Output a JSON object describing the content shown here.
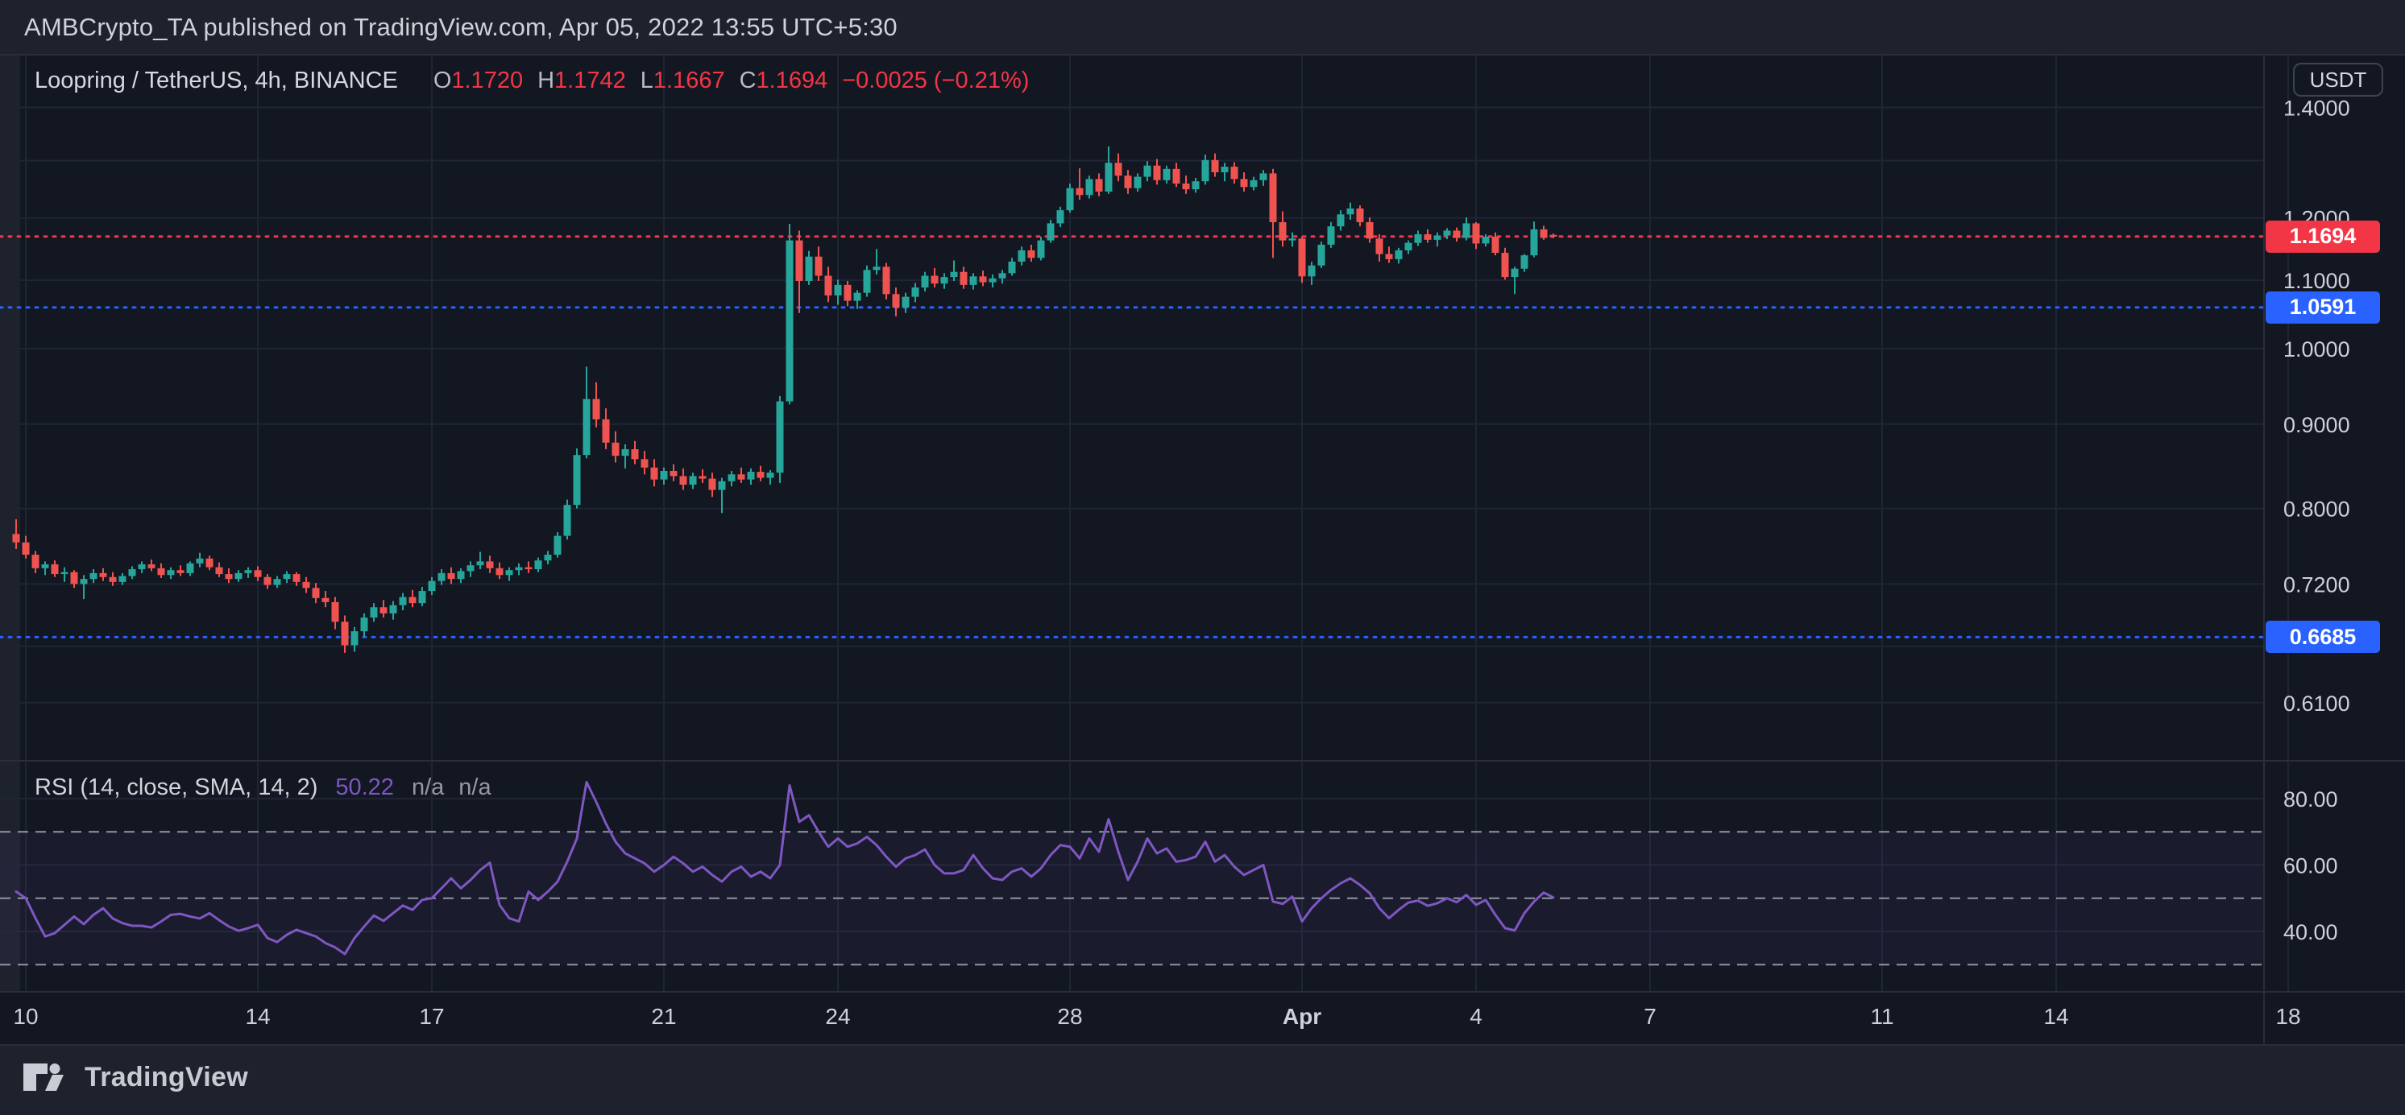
{
  "attribution": {
    "text": "AMBCrypto_TA published on TradingView.com, Apr 05, 2022 13:55 UTC+5:30"
  },
  "legend": {
    "symbol": "Loopring / TetherUS, 4h, BINANCE",
    "o_label": "O",
    "o": "1.1720",
    "h_label": "H",
    "h": "1.1742",
    "l_label": "L",
    "l": "1.1667",
    "c_label": "C",
    "c": "1.1694",
    "change": "−0.0025 (−0.21%)"
  },
  "rsi_legend": {
    "title": "RSI (14, close, SMA, 14, 2)",
    "value": "50.22",
    "na1": "n/a",
    "na2": "n/a"
  },
  "axis": {
    "currency": "USDT"
  },
  "footer": {
    "brand": "TradingView"
  },
  "colors": {
    "background": "#1e222d",
    "pane": "#131722",
    "grid": "#1f2534",
    "border": "#2a2e39",
    "up": "#26a69a",
    "down": "#ef5350",
    "accent_red": "#f23645",
    "accent_blue": "#2962ff",
    "rsi_line": "#7e57c2",
    "rsi_band_fill": "rgba(126,87,194,0.07)",
    "rsi_band_line": "#a6abb8",
    "text": "#ced0db",
    "text_dim": "#b2b5be"
  },
  "chart_data": {
    "type": "candlestick",
    "title": "Loopring / TetherUS, 4h, BINANCE",
    "legend_position": "top-left",
    "grid": true,
    "scale": "log",
    "x_range": [
      "Mar 09 20:00",
      "Apr 05 08:00"
    ],
    "price_ticks": [
      {
        "v": 1.4,
        "label": "1.4000"
      },
      {
        "v": 1.3,
        "label": ""
      },
      {
        "v": 1.2,
        "label": "1.2000"
      },
      {
        "v": 1.1,
        "label": "1.1000"
      },
      {
        "v": 1.0,
        "label": "1.0000"
      },
      {
        "v": 0.9,
        "label": "0.9000"
      },
      {
        "v": 0.8,
        "label": "0.8000"
      },
      {
        "v": 0.72,
        "label": "0.7200"
      },
      {
        "v": 0.66,
        "label": ""
      },
      {
        "v": 0.61,
        "label": "0.6100"
      }
    ],
    "time_ticks": [
      {
        "bar": 1,
        "label": "10",
        "bold": false
      },
      {
        "bar": 25,
        "label": "14",
        "bold": false
      },
      {
        "bar": 43,
        "label": "17",
        "bold": false
      },
      {
        "bar": 67,
        "label": "21",
        "bold": false
      },
      {
        "bar": 85,
        "label": "24",
        "bold": false
      },
      {
        "bar": 109,
        "label": "28",
        "bold": false
      },
      {
        "bar": 133,
        "label": "Apr",
        "bold": true
      },
      {
        "bar": 151,
        "label": "4",
        "bold": false
      },
      {
        "bar": 169,
        "label": "7",
        "bold": false
      },
      {
        "bar": 193,
        "label": "11",
        "bold": false
      },
      {
        "bar": 211,
        "label": "14",
        "bold": false
      },
      {
        "bar": 235,
        "label": "18",
        "bold": false
      }
    ],
    "levels": [
      {
        "value": 1.1694,
        "label": "1.1694",
        "color": "#f23645",
        "style": "dotted",
        "kind": "last-price"
      },
      {
        "value": 1.0591,
        "label": "1.0591",
        "color": "#2962ff",
        "style": "dotted",
        "kind": "drawn-line"
      },
      {
        "value": 0.6685,
        "label": "0.6685",
        "color": "#2962ff",
        "style": "dotted",
        "kind": "drawn-line"
      }
    ],
    "bars": [
      [
        0.772,
        0.788,
        0.756,
        0.763
      ],
      [
        0.763,
        0.77,
        0.746,
        0.75
      ],
      [
        0.75,
        0.754,
        0.731,
        0.736
      ],
      [
        0.736,
        0.743,
        0.729,
        0.74
      ],
      [
        0.74,
        0.744,
        0.727,
        0.73
      ],
      [
        0.73,
        0.737,
        0.722,
        0.732
      ],
      [
        0.732,
        0.734,
        0.716,
        0.72
      ],
      [
        0.72,
        0.729,
        0.705,
        0.725
      ],
      [
        0.725,
        0.735,
        0.721,
        0.731
      ],
      [
        0.731,
        0.736,
        0.723,
        0.727
      ],
      [
        0.727,
        0.732,
        0.718,
        0.722
      ],
      [
        0.722,
        0.731,
        0.719,
        0.728
      ],
      [
        0.728,
        0.738,
        0.725,
        0.735
      ],
      [
        0.735,
        0.743,
        0.731,
        0.74
      ],
      [
        0.74,
        0.745,
        0.733,
        0.736
      ],
      [
        0.736,
        0.741,
        0.726,
        0.729
      ],
      [
        0.729,
        0.737,
        0.725,
        0.734
      ],
      [
        0.734,
        0.739,
        0.728,
        0.731
      ],
      [
        0.731,
        0.743,
        0.728,
        0.741
      ],
      [
        0.741,
        0.752,
        0.737,
        0.746
      ],
      [
        0.746,
        0.749,
        0.734,
        0.737
      ],
      [
        0.737,
        0.742,
        0.727,
        0.73
      ],
      [
        0.73,
        0.736,
        0.721,
        0.725
      ],
      [
        0.725,
        0.734,
        0.722,
        0.731
      ],
      [
        0.731,
        0.737,
        0.726,
        0.734
      ],
      [
        0.734,
        0.738,
        0.723,
        0.727
      ],
      [
        0.727,
        0.73,
        0.715,
        0.719
      ],
      [
        0.719,
        0.728,
        0.716,
        0.725
      ],
      [
        0.725,
        0.733,
        0.721,
        0.73
      ],
      [
        0.73,
        0.732,
        0.718,
        0.722
      ],
      [
        0.722,
        0.727,
        0.711,
        0.716
      ],
      [
        0.716,
        0.721,
        0.701,
        0.706
      ],
      [
        0.706,
        0.713,
        0.697,
        0.702
      ],
      [
        0.702,
        0.707,
        0.676,
        0.683
      ],
      [
        0.683,
        0.689,
        0.654,
        0.661
      ],
      [
        0.661,
        0.678,
        0.655,
        0.674
      ],
      [
        0.674,
        0.691,
        0.669,
        0.687
      ],
      [
        0.687,
        0.701,
        0.683,
        0.697
      ],
      [
        0.697,
        0.704,
        0.687,
        0.691
      ],
      [
        0.691,
        0.703,
        0.685,
        0.699
      ],
      [
        0.699,
        0.711,
        0.694,
        0.707
      ],
      [
        0.707,
        0.714,
        0.697,
        0.701
      ],
      [
        0.701,
        0.717,
        0.698,
        0.713
      ],
      [
        0.713,
        0.727,
        0.709,
        0.723
      ],
      [
        0.723,
        0.735,
        0.719,
        0.731
      ],
      [
        0.731,
        0.737,
        0.72,
        0.725
      ],
      [
        0.725,
        0.736,
        0.721,
        0.733
      ],
      [
        0.733,
        0.743,
        0.727,
        0.739
      ],
      [
        0.739,
        0.753,
        0.735,
        0.743
      ],
      [
        0.743,
        0.749,
        0.731,
        0.736
      ],
      [
        0.736,
        0.742,
        0.725,
        0.729
      ],
      [
        0.729,
        0.737,
        0.723,
        0.734
      ],
      [
        0.734,
        0.741,
        0.729,
        0.737
      ],
      [
        0.737,
        0.743,
        0.731,
        0.735
      ],
      [
        0.735,
        0.747,
        0.732,
        0.744
      ],
      [
        0.744,
        0.754,
        0.74,
        0.75
      ],
      [
        0.75,
        0.774,
        0.747,
        0.77
      ],
      [
        0.77,
        0.81,
        0.766,
        0.804
      ],
      [
        0.804,
        0.87,
        0.8,
        0.862
      ],
      [
        0.862,
        0.975,
        0.858,
        0.932
      ],
      [
        0.932,
        0.954,
        0.896,
        0.906
      ],
      [
        0.906,
        0.92,
        0.869,
        0.877
      ],
      [
        0.877,
        0.891,
        0.853,
        0.861
      ],
      [
        0.861,
        0.875,
        0.846,
        0.869
      ],
      [
        0.869,
        0.879,
        0.851,
        0.857
      ],
      [
        0.857,
        0.867,
        0.839,
        0.847
      ],
      [
        0.847,
        0.857,
        0.825,
        0.833
      ],
      [
        0.833,
        0.847,
        0.827,
        0.843
      ],
      [
        0.843,
        0.851,
        0.831,
        0.837
      ],
      [
        0.837,
        0.846,
        0.821,
        0.827
      ],
      [
        0.827,
        0.841,
        0.822,
        0.837
      ],
      [
        0.837,
        0.845,
        0.829,
        0.834
      ],
      [
        0.834,
        0.841,
        0.813,
        0.821
      ],
      [
        0.821,
        0.835,
        0.795,
        0.831
      ],
      [
        0.831,
        0.843,
        0.825,
        0.839
      ],
      [
        0.839,
        0.847,
        0.829,
        0.833
      ],
      [
        0.833,
        0.846,
        0.827,
        0.842
      ],
      [
        0.842,
        0.849,
        0.831,
        0.835
      ],
      [
        0.835,
        0.844,
        0.827,
        0.841
      ],
      [
        0.841,
        0.936,
        0.829,
        0.929
      ],
      [
        0.929,
        1.19,
        0.925,
        1.163
      ],
      [
        1.163,
        1.179,
        1.051,
        1.099
      ],
      [
        1.099,
        1.146,
        1.093,
        1.137
      ],
      [
        1.137,
        1.153,
        1.099,
        1.107
      ],
      [
        1.107,
        1.121,
        1.067,
        1.077
      ],
      [
        1.077,
        1.101,
        1.063,
        1.093
      ],
      [
        1.093,
        1.099,
        1.061,
        1.069
      ],
      [
        1.069,
        1.085,
        1.057,
        1.081
      ],
      [
        1.081,
        1.123,
        1.075,
        1.116
      ],
      [
        1.116,
        1.149,
        1.109,
        1.121
      ],
      [
        1.121,
        1.127,
        1.071,
        1.079
      ],
      [
        1.079,
        1.089,
        1.046,
        1.059
      ],
      [
        1.059,
        1.081,
        1.051,
        1.075
      ],
      [
        1.075,
        1.096,
        1.067,
        1.089
      ],
      [
        1.089,
        1.113,
        1.083,
        1.107
      ],
      [
        1.107,
        1.119,
        1.089,
        1.095
      ],
      [
        1.095,
        1.111,
        1.087,
        1.105
      ],
      [
        1.105,
        1.131,
        1.099,
        1.113
      ],
      [
        1.113,
        1.121,
        1.087,
        1.093
      ],
      [
        1.093,
        1.111,
        1.086,
        1.106
      ],
      [
        1.106,
        1.115,
        1.091,
        1.097
      ],
      [
        1.097,
        1.109,
        1.089,
        1.103
      ],
      [
        1.103,
        1.116,
        1.095,
        1.111
      ],
      [
        1.111,
        1.135,
        1.107,
        1.129
      ],
      [
        1.129,
        1.153,
        1.123,
        1.147
      ],
      [
        1.147,
        1.156,
        1.129,
        1.135
      ],
      [
        1.135,
        1.169,
        1.131,
        1.163
      ],
      [
        1.163,
        1.197,
        1.159,
        1.191
      ],
      [
        1.191,
        1.219,
        1.185,
        1.213
      ],
      [
        1.213,
        1.259,
        1.209,
        1.251
      ],
      [
        1.251,
        1.286,
        1.231,
        1.239
      ],
      [
        1.239,
        1.273,
        1.233,
        1.267
      ],
      [
        1.267,
        1.277,
        1.237,
        1.245
      ],
      [
        1.245,
        1.326,
        1.241,
        1.296
      ],
      [
        1.296,
        1.313,
        1.263,
        1.273
      ],
      [
        1.273,
        1.283,
        1.241,
        1.251
      ],
      [
        1.251,
        1.277,
        1.245,
        1.271
      ],
      [
        1.271,
        1.299,
        1.263,
        1.291
      ],
      [
        1.291,
        1.303,
        1.257,
        1.265
      ],
      [
        1.265,
        1.291,
        1.259,
        1.285
      ],
      [
        1.285,
        1.296,
        1.253,
        1.259
      ],
      [
        1.259,
        1.273,
        1.241,
        1.249
      ],
      [
        1.249,
        1.269,
        1.243,
        1.263
      ],
      [
        1.263,
        1.311,
        1.257,
        1.301
      ],
      [
        1.301,
        1.313,
        1.271,
        1.279
      ],
      [
        1.279,
        1.296,
        1.263,
        1.289
      ],
      [
        1.289,
        1.297,
        1.259,
        1.267
      ],
      [
        1.267,
        1.279,
        1.245,
        1.253
      ],
      [
        1.253,
        1.271,
        1.247,
        1.265
      ],
      [
        1.265,
        1.283,
        1.255,
        1.277
      ],
      [
        1.277,
        1.285,
        1.135,
        1.193
      ],
      [
        1.193,
        1.211,
        1.153,
        1.163
      ],
      [
        1.163,
        1.176,
        1.153,
        1.166
      ],
      [
        1.166,
        1.169,
        1.096,
        1.106
      ],
      [
        1.106,
        1.129,
        1.093,
        1.123
      ],
      [
        1.123,
        1.161,
        1.119,
        1.156
      ],
      [
        1.156,
        1.193,
        1.151,
        1.186
      ],
      [
        1.186,
        1.213,
        1.179,
        1.206
      ],
      [
        1.206,
        1.226,
        1.197,
        1.216
      ],
      [
        1.216,
        1.221,
        1.186,
        1.193
      ],
      [
        1.193,
        1.201,
        1.159,
        1.166
      ],
      [
        1.166,
        1.173,
        1.129,
        1.141
      ],
      [
        1.141,
        1.153,
        1.127,
        1.133
      ],
      [
        1.133,
        1.151,
        1.126,
        1.147
      ],
      [
        1.147,
        1.163,
        1.141,
        1.159
      ],
      [
        1.159,
        1.179,
        1.154,
        1.173
      ],
      [
        1.173,
        1.181,
        1.159,
        1.164
      ],
      [
        1.164,
        1.176,
        1.153,
        1.171
      ],
      [
        1.171,
        1.183,
        1.165,
        1.179
      ],
      [
        1.179,
        1.184,
        1.161,
        1.167
      ],
      [
        1.167,
        1.201,
        1.163,
        1.191
      ],
      [
        1.191,
        1.193,
        1.149,
        1.158
      ],
      [
        1.158,
        1.173,
        1.153,
        1.169
      ],
      [
        1.169,
        1.176,
        1.139,
        1.143
      ],
      [
        1.143,
        1.151,
        1.101,
        1.105
      ],
      [
        1.105,
        1.121,
        1.079,
        1.118
      ],
      [
        1.118,
        1.141,
        1.113,
        1.139
      ],
      [
        1.139,
        1.194,
        1.136,
        1.181
      ],
      [
        1.181,
        1.187,
        1.164,
        1.167
      ],
      [
        1.172,
        1.1742,
        1.1667,
        1.1694
      ]
    ],
    "rsi": {
      "title": "RSI (14, close, SMA, 14, 2)",
      "last_value": 50.22,
      "band_levels": [
        70,
        50,
        30
      ],
      "ticks": [
        {
          "v": 80,
          "label": "80.00"
        },
        {
          "v": 60,
          "label": "60.00"
        },
        {
          "v": 40,
          "label": "40.00"
        }
      ],
      "values": [
        52,
        50,
        44,
        38.5,
        39.5,
        42,
        44.5,
        42.2,
        45,
        47,
        43.9,
        42.5,
        41.7,
        41.7,
        41.2,
        43,
        45,
        45.3,
        44.5,
        43.9,
        45.5,
        43.4,
        41.5,
        40.2,
        41,
        42,
        38,
        36.8,
        39,
        40.5,
        39.5,
        38.5,
        36.5,
        35.2,
        33.2,
        38,
        41.5,
        44.8,
        43.2,
        45.5,
        47.8,
        46.5,
        49.5,
        50,
        53,
        56,
        53,
        55.5,
        58.5,
        60.7,
        48,
        44,
        43,
        52,
        49.5,
        52,
        55,
        61,
        68,
        85,
        79,
        72.5,
        67,
        63.5,
        62,
        60.5,
        58,
        60,
        62.5,
        60.5,
        58,
        59.5,
        57,
        55,
        58,
        59.5,
        56.5,
        58,
        56,
        60,
        84,
        73,
        75,
        70,
        65.5,
        68,
        65.5,
        66.5,
        68.5,
        66,
        62.5,
        59.5,
        62,
        63,
        64.7,
        60,
        57.5,
        57.5,
        58.5,
        63,
        59,
        56,
        55.5,
        58,
        59,
        56.5,
        59,
        63,
        66,
        65.5,
        62,
        68,
        64,
        73.8,
        64,
        55.5,
        61,
        68,
        63.5,
        65,
        61,
        61.5,
        62.5,
        67,
        61,
        63,
        59.5,
        57,
        58.5,
        60,
        49,
        48.3,
        50.5,
        43,
        47,
        50,
        52.5,
        54.5,
        56,
        54,
        51.5,
        47,
        44,
        46.5,
        48.7,
        49.3,
        47.7,
        48.5,
        50,
        48.8,
        51,
        48,
        49.5,
        45,
        41,
        40.3,
        45.5,
        49,
        51.7,
        50.22
      ]
    }
  }
}
